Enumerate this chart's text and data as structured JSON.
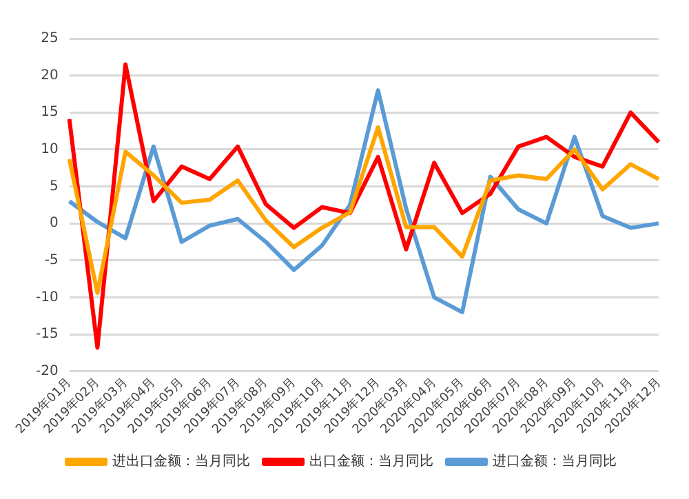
{
  "chart_data": {
    "type": "line",
    "categories": [
      "2019年01月",
      "2019年02月",
      "2019年03月",
      "2019年04月",
      "2019年05月",
      "2019年06月",
      "2019年07月",
      "2019年08月",
      "2019年09月",
      "2019年10月",
      "2019年11月",
      "2019年12月",
      "2020年03月",
      "2020年04月",
      "2020年05月",
      "2020年06月",
      "2020年07月",
      "2020年08月",
      "2020年09月",
      "2020年10月",
      "2020年11月",
      "2020年12月"
    ],
    "series": [
      {
        "name": "进出口金额：当月同比",
        "color": "#ffa500",
        "values": [
          8.7,
          -9.4,
          9.7,
          6.5,
          2.8,
          3.2,
          5.8,
          0.4,
          -3.2,
          -0.6,
          1.5,
          13,
          -0.5,
          -0.5,
          -4.5,
          5.8,
          6.5,
          6,
          10,
          4.6,
          8,
          6
        ]
      },
      {
        "name": "出口金额：当月同比",
        "color": "#ff0000",
        "values": [
          14.1,
          -16.8,
          21.5,
          3,
          7.7,
          6,
          10.4,
          2.6,
          -0.6,
          2.2,
          1.4,
          9,
          -3.5,
          8.2,
          1.4,
          4,
          10.4,
          11.7,
          9,
          7.7,
          15,
          11
        ]
      },
      {
        "name": "进口金额：当月同比",
        "color": "#5b9bd5",
        "values": [
          3,
          0.2,
          -2,
          10.4,
          -2.5,
          -0.3,
          0.6,
          -2.5,
          -6.3,
          -3,
          2.5,
          18,
          2,
          -10,
          -12,
          6.3,
          1.9,
          0,
          11.7,
          1,
          -0.6,
          0
        ]
      }
    ],
    "ylim": [
      -20,
      25
    ],
    "yticks": [
      -20,
      -15,
      -10,
      -5,
      0,
      5,
      10,
      15,
      20,
      25
    ],
    "grid": "y",
    "legend": "bottom",
    "marker": "none",
    "line_style": "solid"
  }
}
